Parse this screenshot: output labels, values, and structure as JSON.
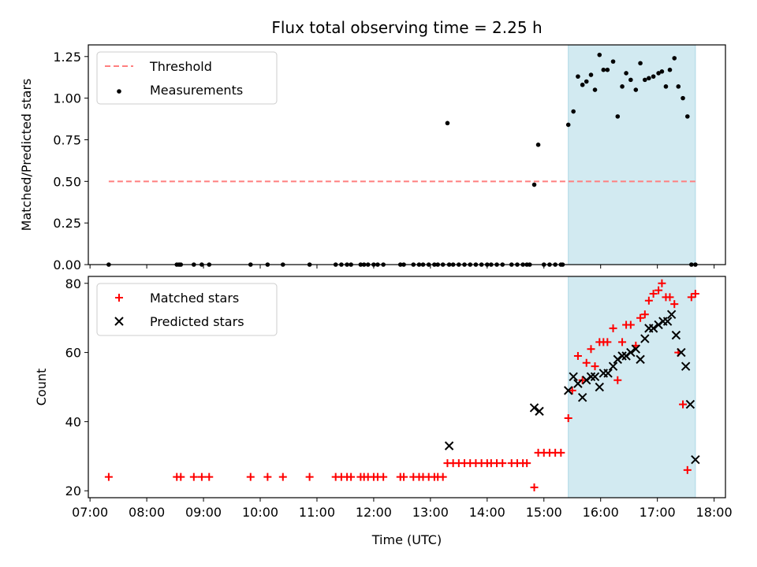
{
  "title": "Flux total observing time = 2.25 h",
  "shade_color": "#add8e6",
  "chart_data": [
    {
      "type": "scatter",
      "panel": "top",
      "ylabel": "Matched/Predicted stars",
      "ylim": [
        0,
        1.32
      ],
      "yticks": [
        0,
        0.25,
        0.5,
        0.75,
        1.0,
        1.25
      ],
      "ytick_labels": [
        "0.00",
        "0.25",
        "0.50",
        "0.75",
        "1.00",
        "1.25"
      ],
      "xlim": [
        6.97,
        18.2
      ],
      "shaded_range": [
        15.43,
        17.67
      ],
      "legend": {
        "position": "top-left",
        "entries": [
          "Threshold",
          "Measurements"
        ]
      },
      "series": [
        {
          "name": "Threshold",
          "kind": "dashed-line",
          "color": "#ff7f7f",
          "x": [
            7.33,
            17.67
          ],
          "y": [
            0.5,
            0.5
          ]
        },
        {
          "name": "Measurements",
          "kind": "dot",
          "color": "#000000",
          "x": [
            7.33,
            8.53,
            8.57,
            8.6,
            8.83,
            8.97,
            9.1,
            9.83,
            10.13,
            10.4,
            10.87,
            11.33,
            11.43,
            11.53,
            11.6,
            11.77,
            11.83,
            11.9,
            12.0,
            12.07,
            12.17,
            12.47,
            12.53,
            12.7,
            12.8,
            12.87,
            12.97,
            13.07,
            13.13,
            13.22,
            13.3,
            13.33,
            13.4,
            13.5,
            13.6,
            13.7,
            13.8,
            13.9,
            14.0,
            14.07,
            14.17,
            14.27,
            14.43,
            14.53,
            14.63,
            14.7,
            14.75,
            14.83,
            14.9,
            15.0,
            15.1,
            15.2,
            15.3,
            15.33,
            15.43,
            15.52,
            15.6,
            15.68,
            15.75,
            15.83,
            15.9,
            15.98,
            16.05,
            16.12,
            16.22,
            16.3,
            16.38,
            16.45,
            16.53,
            16.62,
            16.7,
            16.78,
            16.85,
            16.93,
            17.02,
            17.08,
            17.15,
            17.22,
            17.3,
            17.37,
            17.45,
            17.53,
            17.6,
            17.67
          ],
          "y": [
            0,
            0,
            0,
            0,
            0,
            0,
            0,
            0,
            0,
            0,
            0,
            0,
            0,
            0,
            0,
            0,
            0,
            0,
            0,
            0,
            0,
            0,
            0,
            0,
            0,
            0,
            0,
            0,
            0,
            0,
            0.85,
            0,
            0,
            0,
            0,
            0,
            0,
            0,
            0,
            0,
            0,
            0,
            0,
            0,
            0,
            0,
            0,
            0.48,
            0.72,
            0,
            0,
            0,
            0,
            0,
            0.84,
            0.92,
            1.13,
            1.08,
            1.1,
            1.14,
            1.05,
            1.26,
            1.17,
            1.17,
            1.22,
            0.89,
            1.07,
            1.15,
            1.11,
            1.05,
            1.21,
            1.11,
            1.12,
            1.13,
            1.15,
            1.16,
            1.07,
            1.17,
            1.24,
            1.07,
            1.0,
            0.89,
            0,
            0
          ]
        }
      ]
    },
    {
      "type": "scatter",
      "panel": "bottom",
      "ylabel": "Count",
      "xlabel": "Time (UTC)",
      "ylim": [
        18,
        82
      ],
      "yticks": [
        20,
        40,
        60,
        80
      ],
      "ytick_labels": [
        "20",
        "40",
        "60",
        "80"
      ],
      "xlim": [
        6.97,
        18.2
      ],
      "xticks": [
        7,
        8,
        9,
        10,
        11,
        12,
        13,
        14,
        15,
        16,
        17,
        18
      ],
      "xtick_labels": [
        "07:00",
        "08:00",
        "09:00",
        "10:00",
        "11:00",
        "12:00",
        "13:00",
        "14:00",
        "15:00",
        "16:00",
        "17:00",
        "18:00"
      ],
      "shaded_range": [
        15.43,
        17.67
      ],
      "legend": {
        "position": "top-left",
        "entries": [
          "Matched stars",
          "Predicted stars"
        ]
      },
      "series": [
        {
          "name": "Matched stars",
          "marker": "plus",
          "color": "#ff0000",
          "x": [
            7.33,
            8.53,
            8.6,
            8.83,
            8.97,
            9.1,
            9.83,
            10.13,
            10.4,
            10.87,
            11.33,
            11.43,
            11.53,
            11.6,
            11.77,
            11.83,
            11.9,
            12.0,
            12.07,
            12.17,
            12.47,
            12.53,
            12.7,
            12.8,
            12.87,
            12.97,
            13.07,
            13.13,
            13.22,
            13.3,
            13.4,
            13.5,
            13.6,
            13.7,
            13.8,
            13.9,
            14.0,
            14.07,
            14.17,
            14.27,
            14.43,
            14.53,
            14.63,
            14.7,
            14.83,
            14.9,
            15.0,
            15.1,
            15.2,
            15.3,
            15.43,
            15.5,
            15.6,
            15.68,
            15.75,
            15.83,
            15.9,
            15.98,
            16.05,
            16.12,
            16.22,
            16.3,
            16.38,
            16.45,
            16.53,
            16.62,
            16.7,
            16.78,
            16.85,
            16.93,
            17.02,
            17.08,
            17.15,
            17.22,
            17.3,
            17.37,
            17.45,
            17.53,
            17.6,
            17.67
          ],
          "y": [
            24,
            24,
            24,
            24,
            24,
            24,
            24,
            24,
            24,
            24,
            24,
            24,
            24,
            24,
            24,
            24,
            24,
            24,
            24,
            24,
            24,
            24,
            24,
            24,
            24,
            24,
            24,
            24,
            24,
            28,
            28,
            28,
            28,
            28,
            28,
            28,
            28,
            28,
            28,
            28,
            28,
            28,
            28,
            28,
            21,
            31,
            31,
            31,
            31,
            31,
            41,
            49,
            59,
            52,
            57,
            61,
            56,
            63,
            63,
            63,
            67,
            52,
            63,
            68,
            68,
            62,
            70,
            71,
            75,
            77,
            78,
            80,
            76,
            76,
            74,
            60,
            45,
            26,
            76,
            77
          ]
        },
        {
          "name": "Predicted stars",
          "marker": "x",
          "color": "#000000",
          "x": [
            13.33,
            14.83,
            14.92,
            15.43,
            15.52,
            15.6,
            15.68,
            15.75,
            15.83,
            15.9,
            15.98,
            16.05,
            16.13,
            16.22,
            16.3,
            16.38,
            16.45,
            16.53,
            16.62,
            16.7,
            16.78,
            16.85,
            16.93,
            17.02,
            17.1,
            17.18,
            17.25,
            17.33,
            17.42,
            17.5,
            17.58,
            17.67
          ],
          "y": [
            33,
            44,
            43,
            49,
            53,
            51,
            47,
            52,
            53,
            53,
            50,
            54,
            54,
            56,
            58,
            59,
            59,
            60,
            61,
            58,
            64,
            67,
            67,
            68,
            69,
            69,
            71,
            65,
            60,
            56,
            45,
            29
          ]
        }
      ]
    }
  ]
}
